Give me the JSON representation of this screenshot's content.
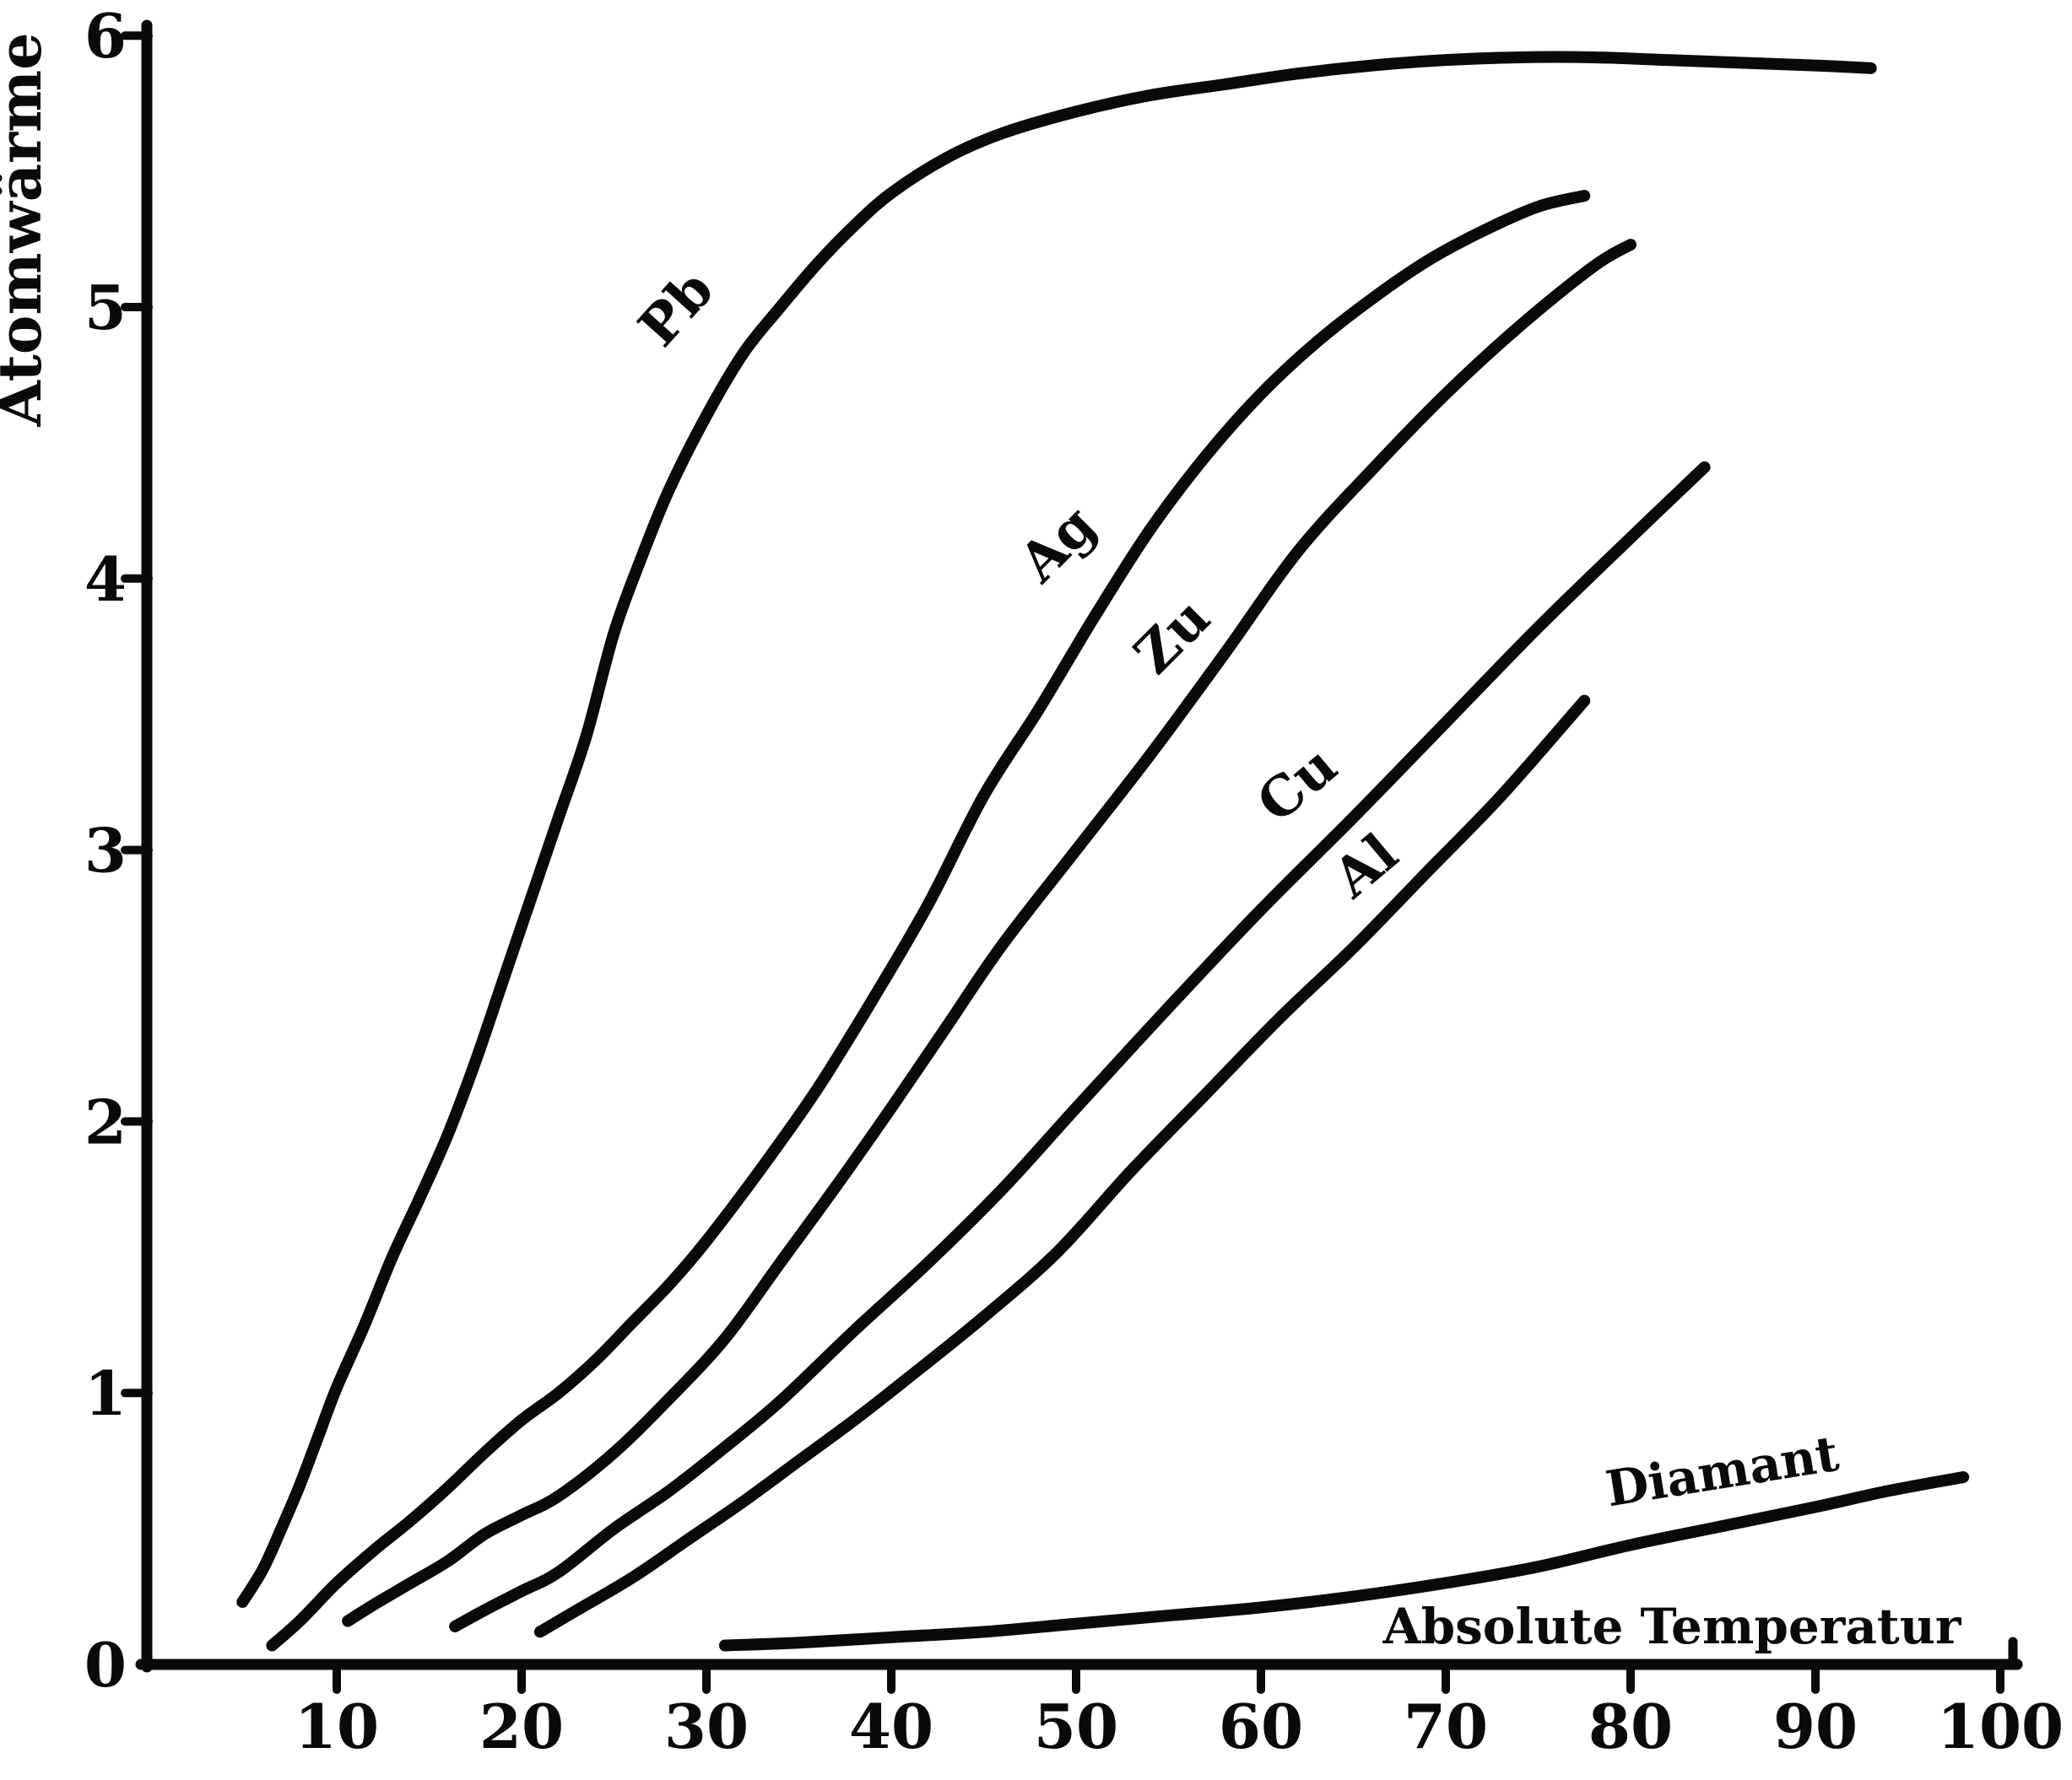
{
  "figure": {
    "background": "#ffffff",
    "ink_color": "#0a0a0a"
  },
  "chart_data": {
    "type": "line",
    "title": "",
    "ylabel": "Atomwärme",
    "xlabel": "Absolute Temperatur",
    "xlim": [
      0,
      102.5
    ],
    "ylim": [
      0,
      6.1
    ],
    "x_ticks": [
      10,
      20,
      30,
      40,
      50,
      60,
      70,
      80,
      90,
      100
    ],
    "y_ticks": [
      0,
      1,
      2,
      3,
      4,
      5,
      6
    ],
    "grid": false,
    "legend": "labels-along-curves",
    "series": [
      {
        "name": "Pb",
        "label": "Pb",
        "label_at": {
          "T": 29.1,
          "C": 4.95,
          "angle": -48
        },
        "x": [
          4.9,
          6,
          7,
          8,
          9,
          10,
          11.5,
          13,
          14.5,
          16,
          17.5,
          19,
          20.5,
          22,
          23.5,
          25,
          26.5,
          28,
          30,
          32,
          34,
          36,
          38,
          40,
          43,
          46,
          50,
          54,
          58,
          62,
          66,
          70,
          74,
          78,
          82,
          86,
          90,
          93
        ],
        "y": [
          0.23,
          0.35,
          0.5,
          0.66,
          0.84,
          1.02,
          1.25,
          1.5,
          1.72,
          1.95,
          2.22,
          2.52,
          2.82,
          3.12,
          3.42,
          3.8,
          4.08,
          4.33,
          4.6,
          4.83,
          5.0,
          5.16,
          5.3,
          5.42,
          5.55,
          5.64,
          5.72,
          5.78,
          5.82,
          5.86,
          5.89,
          5.91,
          5.92,
          5.92,
          5.91,
          5.9,
          5.89,
          5.88
        ]
      },
      {
        "name": "Ag",
        "label": "Ag",
        "label_at": {
          "T": 49.7,
          "C": 4.08,
          "angle": -45
        },
        "x": [
          6.5,
          8,
          10,
          12,
          14,
          16,
          18,
          20,
          22,
          24,
          26,
          28,
          30,
          33,
          36,
          39,
          42,
          45,
          48,
          51,
          54,
          57,
          60,
          63,
          66,
          69,
          72,
          75,
          77.5
        ],
        "y": [
          0.07,
          0.16,
          0.3,
          0.42,
          0.53,
          0.65,
          0.78,
          0.9,
          1.0,
          1.12,
          1.26,
          1.4,
          1.56,
          1.83,
          2.12,
          2.45,
          2.8,
          3.2,
          3.52,
          3.86,
          4.18,
          4.45,
          4.68,
          4.87,
          5.03,
          5.17,
          5.28,
          5.37,
          5.41
        ]
      },
      {
        "name": "Zu",
        "label": "Zu",
        "label_at": {
          "T": 55.9,
          "C": 3.74,
          "angle": -45
        },
        "x": [
          10.6,
          12,
          14,
          16,
          18,
          20,
          22,
          25,
          28,
          31,
          34,
          37,
          40,
          43,
          46,
          50,
          54,
          58,
          62,
          66,
          70,
          74,
          78,
          80
        ],
        "y": [
          0.16,
          0.22,
          0.3,
          0.38,
          0.48,
          0.55,
          0.62,
          0.78,
          0.98,
          1.2,
          1.48,
          1.76,
          2.05,
          2.35,
          2.65,
          3.0,
          3.35,
          3.72,
          4.1,
          4.4,
          4.68,
          4.93,
          5.15,
          5.23
        ]
      },
      {
        "name": "Cu",
        "label": "Cu",
        "label_at": {
          "T": 62.6,
          "C": 3.19,
          "angle": -40
        },
        "x": [
          16.4,
          18,
          20,
          22,
          25,
          28,
          31,
          34,
          38,
          42,
          46,
          50,
          55,
          60,
          65,
          70,
          75,
          80,
          84
        ],
        "y": [
          0.14,
          0.2,
          0.27,
          0.34,
          0.5,
          0.64,
          0.8,
          0.97,
          1.23,
          1.48,
          1.75,
          2.05,
          2.42,
          2.78,
          3.12,
          3.47,
          3.82,
          4.15,
          4.41
        ]
      },
      {
        "name": "Al",
        "label": "Al",
        "label_at": {
          "T": 66.3,
          "C": 2.89,
          "angle": -40
        },
        "x": [
          21,
          23,
          26,
          29,
          32,
          35,
          38,
          41,
          45,
          49,
          53,
          57,
          61,
          65,
          69,
          73,
          77.5
        ],
        "y": [
          0.12,
          0.2,
          0.32,
          0.46,
          0.6,
          0.75,
          0.9,
          1.06,
          1.28,
          1.52,
          1.82,
          2.1,
          2.38,
          2.64,
          2.92,
          3.2,
          3.55
        ]
      },
      {
        "name": "Diamant",
        "label": "Diamant",
        "label_at": {
          "T": 85.1,
          "C": 0.65,
          "angle": -9
        },
        "x": [
          31,
          35,
          40,
          45,
          50,
          55,
          60,
          65,
          70,
          75,
          80,
          85,
          90,
          94,
          98
        ],
        "y": [
          0.07,
          0.08,
          0.1,
          0.12,
          0.15,
          0.18,
          0.21,
          0.25,
          0.3,
          0.36,
          0.44,
          0.51,
          0.58,
          0.64,
          0.69
        ]
      }
    ]
  }
}
